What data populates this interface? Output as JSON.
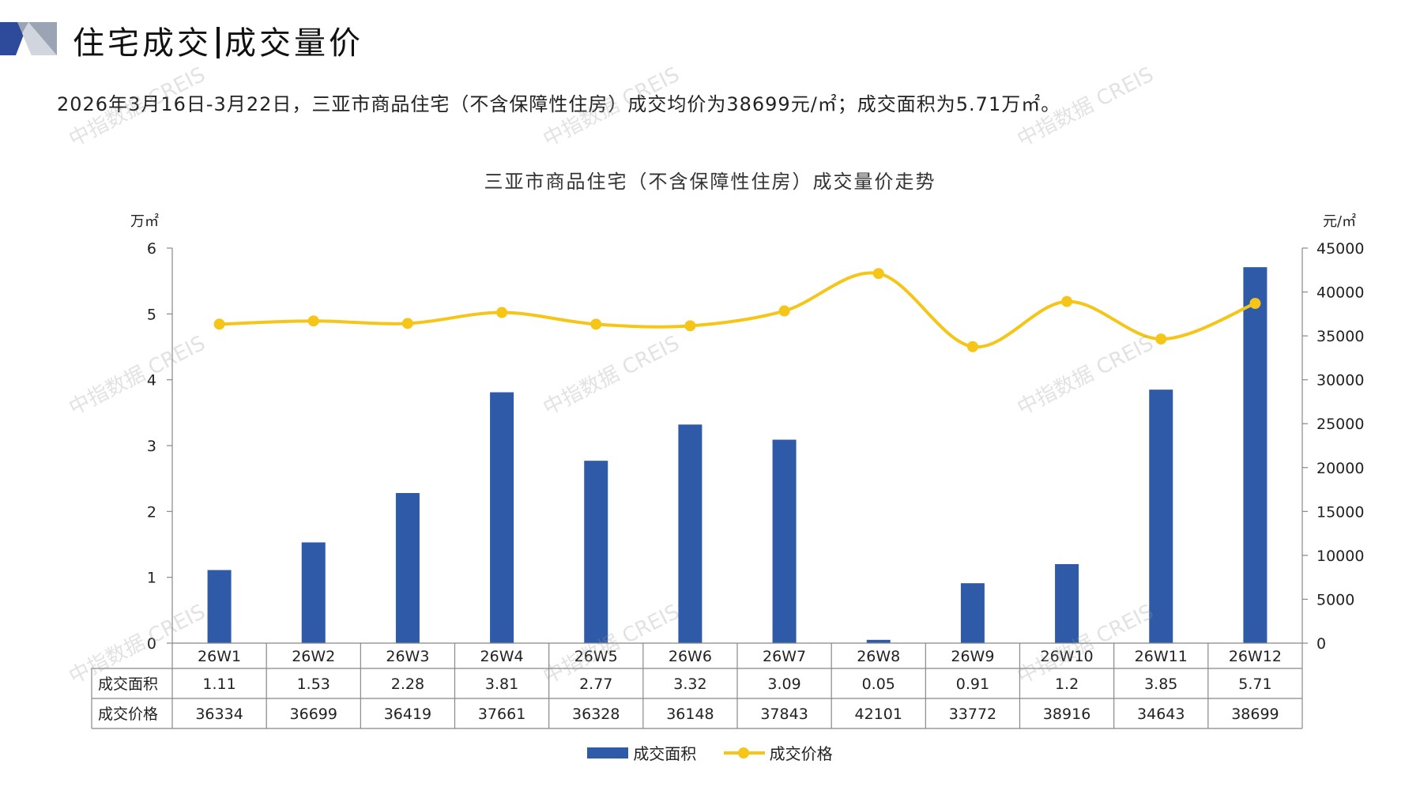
{
  "page_title_part1": "住宅成交",
  "page_title_part2": "成交量价",
  "summary": "2026年3月16日-3月22日，三亚市商品住宅（不含保障性住房）成交均价为38699元/㎡；成交面积为5.71万㎡。",
  "watermark": "中指数据 CREIS",
  "colors": {
    "bar": "#2e5aa8",
    "line": "#f5c518",
    "axis": "#888888"
  },
  "chart_data": {
    "type": "bar",
    "title": "三亚市商品住宅（不含保障性住房）成交量价走势",
    "categories": [
      "26W1",
      "26W2",
      "26W3",
      "26W4",
      "26W5",
      "26W6",
      "26W7",
      "26W8",
      "26W9",
      "26W10",
      "26W11",
      "26W12"
    ],
    "y_left_unit": "万㎡",
    "y_right_unit": "元/㎡",
    "ylim_left": [
      0,
      6
    ],
    "ylim_right": [
      0,
      45000
    ],
    "yticks_left": [
      0,
      1,
      2,
      3,
      4,
      5,
      6
    ],
    "yticks_right": [
      0,
      5000,
      10000,
      15000,
      20000,
      25000,
      30000,
      35000,
      40000,
      45000
    ],
    "series": [
      {
        "name": "成交面积",
        "type": "bar",
        "axis": "left",
        "values": [
          1.11,
          1.53,
          2.28,
          3.81,
          2.77,
          3.32,
          3.09,
          0.05,
          0.91,
          1.2,
          3.85,
          5.71
        ],
        "labels": [
          "1.11",
          "1.53",
          "2.28",
          "3.81",
          "2.77",
          "3.32",
          "3.09",
          "0.05",
          "0.91",
          "1.2",
          "3.85",
          "5.71"
        ]
      },
      {
        "name": "成交价格",
        "type": "line",
        "axis": "right",
        "values": [
          36334,
          36699,
          36419,
          37661,
          36328,
          36148,
          37843,
          42101,
          33772,
          38916,
          34643,
          38699
        ],
        "labels": [
          "36334",
          "36699",
          "36419",
          "37661",
          "36328",
          "36148",
          "37843",
          "42101",
          "33772",
          "38916",
          "34643",
          "38699"
        ]
      }
    ],
    "legend": "bottom",
    "data_table": true
  }
}
